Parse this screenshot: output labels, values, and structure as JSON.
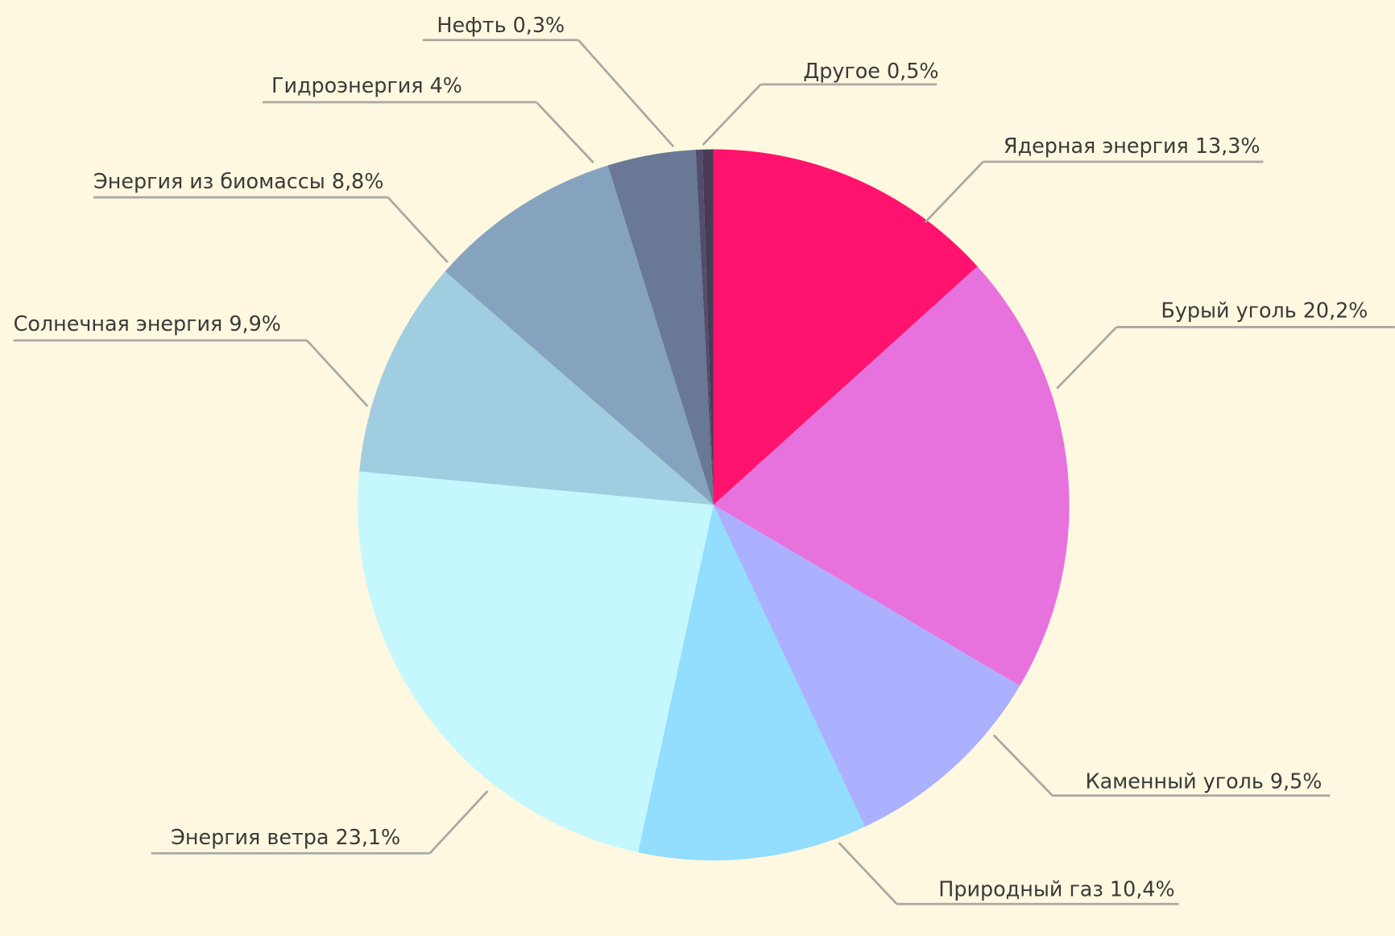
{
  "chart_data": {
    "type": "pie",
    "title": "",
    "legend": "none",
    "slices": [
      {
        "label": "Ядерная энергия 13,3%",
        "name": "Ядерная энергия",
        "value": 13.3,
        "color": "#FF136E"
      },
      {
        "label": "Бурый уголь 20,2%",
        "name": "Бурый уголь",
        "value": 20.2,
        "color": "#E872DD"
      },
      {
        "label": "Каменный уголь 9,5%",
        "name": "Каменный уголь",
        "value": 9.5,
        "color": "#ABB0FF"
      },
      {
        "label": "Природный газ 10,4%",
        "name": "Природный газ",
        "value": 10.4,
        "color": "#93DDFF"
      },
      {
        "label": "Энергия ветра 23,1%",
        "name": "Энергия ветра",
        "value": 23.1,
        "color": "#C4F8FE"
      },
      {
        "label": "Солнечная энергия 9,9%",
        "name": "Солнечная энергия",
        "value": 9.9,
        "color": "#A0CDE0"
      },
      {
        "label": "Энергия из биомассы 8,8%",
        "name": "Энергия из биомассы",
        "value": 8.8,
        "color": "#85A3BE"
      },
      {
        "label": "Гидроэнергия 4%",
        "name": "Гидроэнергия",
        "value": 4,
        "color": "#687895"
      },
      {
        "label": "Нефть 0,3%",
        "name": "Нефть",
        "value": 0.3,
        "color": "#534D6D"
      },
      {
        "label": "Другое 0,5%",
        "name": "Другое",
        "value": 0.5,
        "color": "#4A3B55"
      }
    ],
    "start": "top",
    "direction": "clockwise"
  },
  "colors": {
    "background": "#FDF8DF",
    "leader_line": "#A9A9A4",
    "text": "#3A3A3A"
  }
}
